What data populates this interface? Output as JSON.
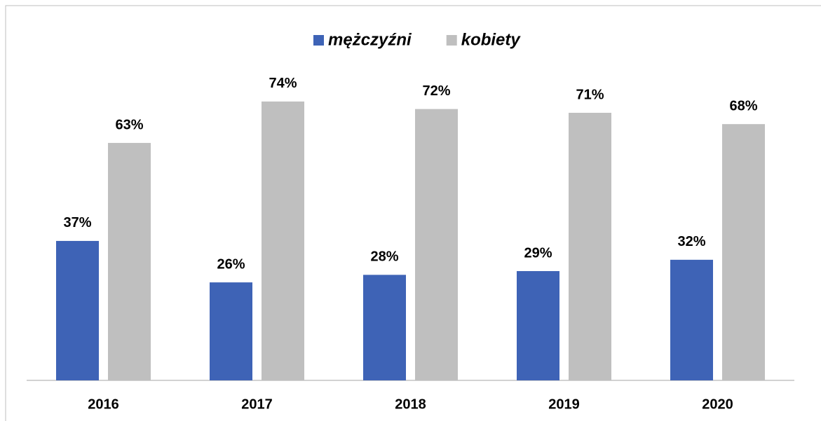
{
  "chart_data": {
    "type": "bar",
    "categories": [
      "2016",
      "2017",
      "2018",
      "2019",
      "2020"
    ],
    "series": [
      {
        "name": "mężczyźni",
        "color": "#3e63b6",
        "values": [
          37,
          26,
          28,
          29,
          32
        ],
        "value_labels": [
          "37%",
          "26%",
          "28%",
          "29%",
          "32%"
        ]
      },
      {
        "name": "kobiety",
        "color": "#bfbfbf",
        "values": [
          63,
          74,
          72,
          71,
          68
        ],
        "value_labels": [
          "63%",
          "74%",
          "72%",
          "71%",
          "68%"
        ]
      }
    ],
    "legend": "top"
  }
}
